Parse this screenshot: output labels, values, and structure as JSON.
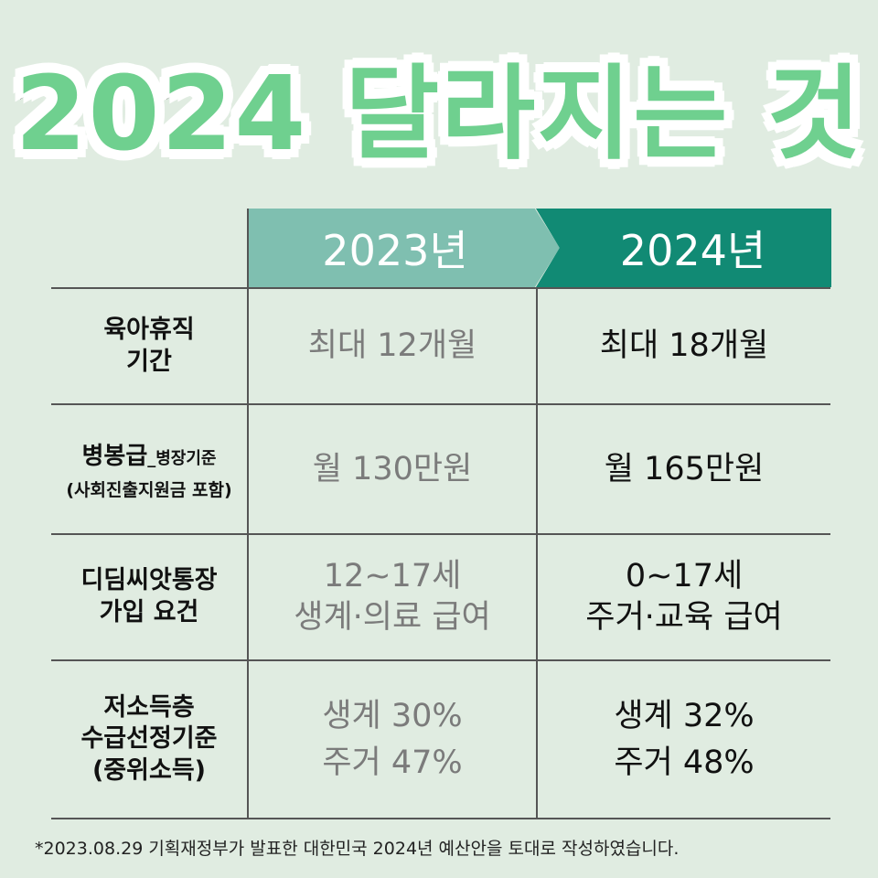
{
  "title": "2024 달라지는 것",
  "headers": {
    "old_year": "2023년",
    "new_year": "2024년"
  },
  "rows": [
    {
      "label_lines": [
        "육아휴직",
        "기간"
      ],
      "old_lines": [
        "최대 12개월"
      ],
      "new_lines": [
        "최대 18개월"
      ]
    },
    {
      "label_main": "병봉급",
      "label_suffix": "_병장기준",
      "label_paren": "(사회진출지원금 포함)",
      "old_lines": [
        "월 130만원"
      ],
      "new_lines": [
        "월 165만원"
      ]
    },
    {
      "label_lines": [
        "디딤씨앗통장",
        "가입 요건"
      ],
      "old_lines": [
        "12~17세",
        "생계·의료 급여"
      ],
      "new_lines": [
        "0~17세",
        "주거·교육 급여"
      ]
    },
    {
      "label_lines": [
        "저소득층",
        "수급선정기준",
        "(중위소득)"
      ],
      "old_lines": [
        "생계 30%",
        "주거 47%"
      ],
      "new_lines": [
        "생계 32%",
        "주거 48%"
      ]
    }
  ],
  "footnote": "*2023.08.29 기획재정부가 발표한 대한민국 2024년 예산안을 토대로 작성하였습니다.",
  "colors": {
    "background": "#e0ece1",
    "title_fill": "#6fd08f",
    "header_old": "#7fbfb0",
    "header_new": "#118a74",
    "old_text": "#7b7b7b",
    "new_text": "#111111"
  }
}
